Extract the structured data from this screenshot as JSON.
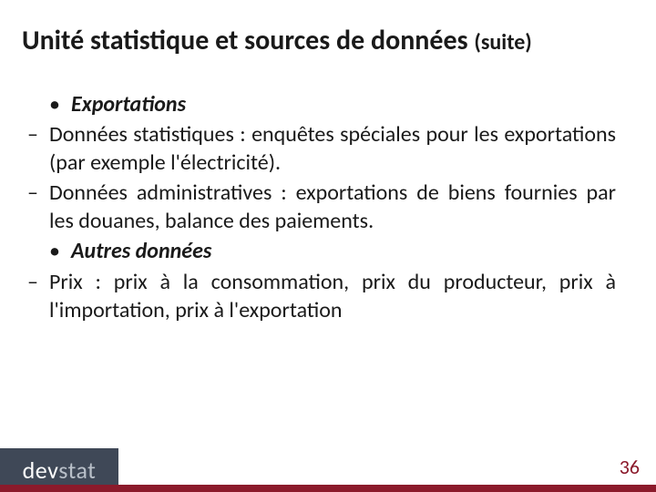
{
  "title_main": "Unité statistique et sources de données ",
  "title_suffix": "(suite)",
  "bullets": {
    "b1": "Exportations",
    "d1": "Données statistiques : enquêtes spéciales pour les exportations (par exemple l'électricité).",
    "d2": "Données administratives : exportations de biens fournies par les douanes, balance des paiements.",
    "b2": "Autres données",
    "d3": "Prix : prix à la consommation, prix du producteur, prix à l'importation, prix à l'exportation"
  },
  "logo": {
    "part1": "dev",
    "part2": "stat"
  },
  "page_number": "36",
  "colors": {
    "accent_bar": "#8b1a2b",
    "logo_bg": "#3f4857",
    "logo_fg1": "#ffffff",
    "logo_fg2": "#b9c0c9",
    "text": "#1a1a1a",
    "page_num": "#8b1a2b"
  }
}
